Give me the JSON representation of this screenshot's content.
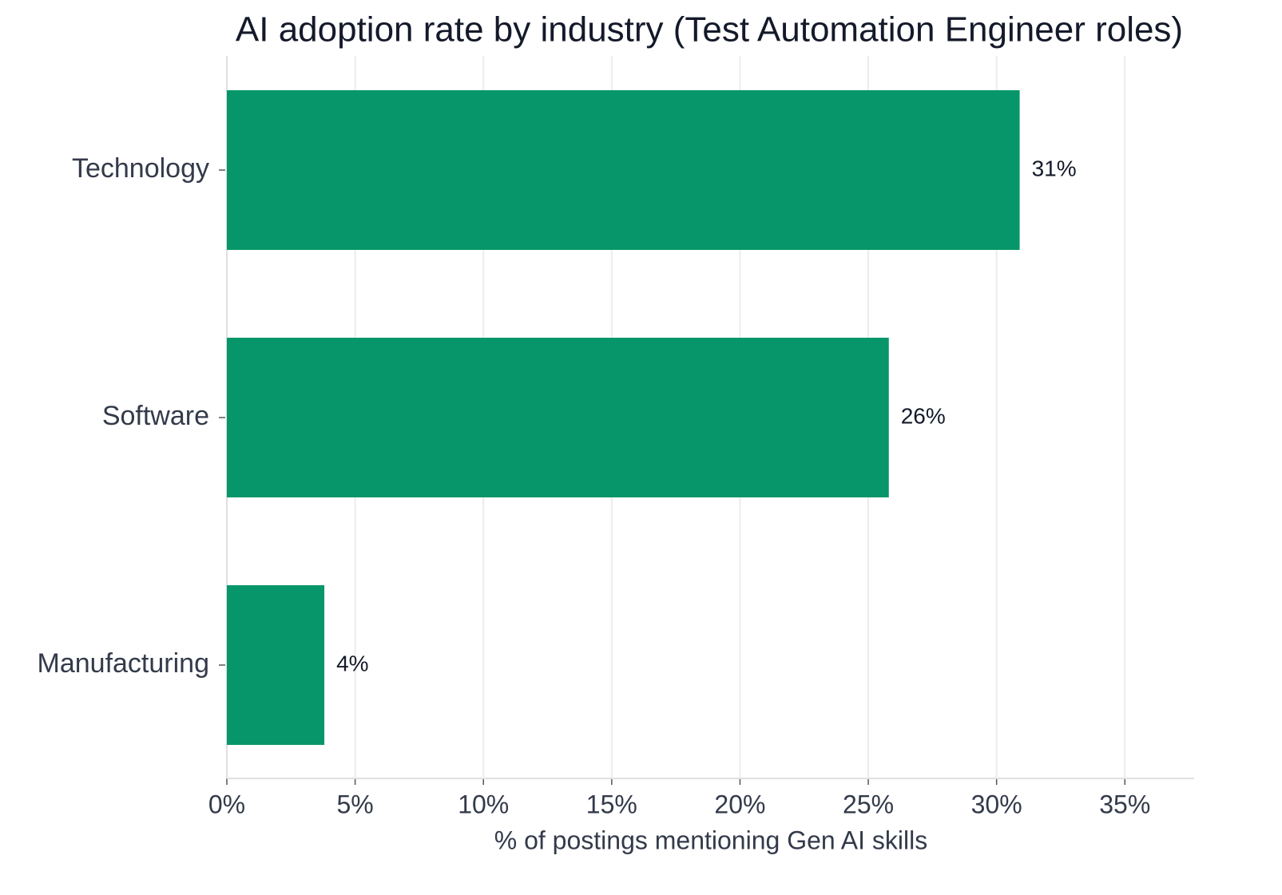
{
  "chart_data": {
    "type": "barh",
    "title": "AI adoption rate by industry (Test Automation Engineer roles)",
    "categories": [
      "Technology",
      "Software",
      "Manufacturing"
    ],
    "values": [
      30.9,
      25.8,
      3.8
    ],
    "value_labels": [
      "31%",
      "26%",
      "4%"
    ],
    "color": "#079669",
    "xlabel": "% of postings mentioning Gen AI skills",
    "xlim": [
      0,
      37.7
    ],
    "xticks": [
      {
        "value": 0,
        "label": "0%"
      },
      {
        "value": 5,
        "label": "5%"
      },
      {
        "value": 10,
        "label": "10%"
      },
      {
        "value": 15,
        "label": "15%"
      },
      {
        "value": 20,
        "label": "20%"
      },
      {
        "value": 25,
        "label": "25%"
      },
      {
        "value": 30,
        "label": "30%"
      },
      {
        "value": 35,
        "label": "35%"
      }
    ],
    "grid": true
  }
}
